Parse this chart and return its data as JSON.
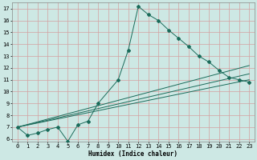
{
  "xlabel": "Humidex (Indice chaleur)",
  "ylabel": "",
  "bg_color": "#cde8e4",
  "grid_color": "#d4a0a0",
  "line_color": "#1a6b5a",
  "xlim": [
    -0.5,
    23.5
  ],
  "ylim": [
    5.8,
    17.5
  ],
  "xticks": [
    0,
    1,
    2,
    3,
    4,
    5,
    6,
    7,
    8,
    9,
    10,
    11,
    12,
    13,
    14,
    15,
    16,
    17,
    18,
    19,
    20,
    21,
    22,
    23
  ],
  "yticks": [
    6,
    7,
    8,
    9,
    10,
    11,
    12,
    13,
    14,
    15,
    16,
    17
  ],
  "zigzag": {
    "x": [
      0,
      1,
      2,
      3,
      4,
      5,
      6,
      7,
      8,
      10,
      11,
      12,
      13,
      14,
      15,
      16,
      17,
      18,
      19,
      20,
      21,
      22,
      23
    ],
    "y": [
      7.0,
      6.3,
      6.5,
      6.8,
      7.0,
      5.8,
      7.2,
      7.5,
      9.0,
      11.0,
      13.5,
      17.2,
      16.5,
      16.0,
      15.2,
      14.5,
      13.8,
      13.0,
      12.5,
      11.8,
      11.2,
      11.0,
      10.8
    ]
  },
  "straight_lines": [
    {
      "x": [
        0,
        23
      ],
      "y": [
        7.0,
        11.0
      ]
    },
    {
      "x": [
        0,
        23
      ],
      "y": [
        7.0,
        11.5
      ]
    },
    {
      "x": [
        0,
        23
      ],
      "y": [
        7.0,
        12.2
      ]
    }
  ]
}
